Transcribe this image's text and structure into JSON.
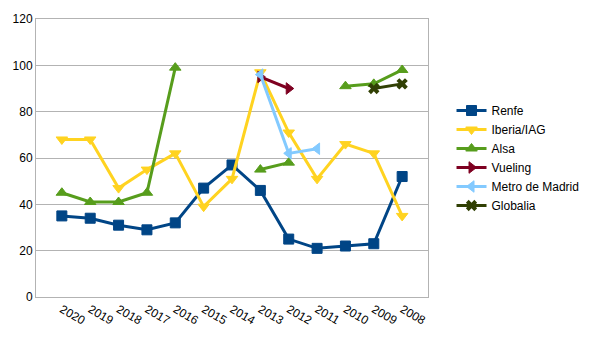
{
  "chart_data": {
    "type": "line",
    "categories": [
      "2020",
      "2019",
      "2018",
      "2017",
      "2016",
      "2015",
      "2014",
      "2013",
      "2012",
      "2011",
      "2010",
      "2009",
      "2008"
    ],
    "series": [
      {
        "name": "Renfe",
        "color": "#004586",
        "marker": "square",
        "values": [
          35,
          34,
          31,
          29,
          32,
          47,
          57,
          46,
          25,
          21,
          22,
          23,
          52
        ]
      },
      {
        "name": "Iberia/IAG",
        "color": "#ffd320",
        "marker": "triangle-down",
        "values": [
          68,
          68,
          47,
          55,
          62,
          39,
          51,
          97,
          71,
          51,
          66,
          62,
          35
        ]
      },
      {
        "name": "Alsa",
        "color": "#579d1c",
        "marker": "triangle-up",
        "values": [
          45,
          41,
          41,
          45,
          99,
          null,
          null,
          55,
          58,
          null,
          91,
          92,
          98
        ]
      },
      {
        "name": "Vueling",
        "color": "#7e0021",
        "marker": "triangle-right",
        "values": [
          null,
          null,
          null,
          null,
          null,
          null,
          null,
          95,
          90,
          null,
          null,
          null,
          null
        ]
      },
      {
        "name": "Metro de Madrid",
        "color": "#83caff",
        "marker": "triangle-left",
        "values": [
          null,
          null,
          null,
          null,
          null,
          null,
          null,
          96,
          62,
          64,
          null,
          null,
          null
        ]
      },
      {
        "name": "Globalia",
        "color": "#314004",
        "marker": "x",
        "values": [
          null,
          null,
          null,
          null,
          null,
          null,
          null,
          null,
          null,
          null,
          null,
          90,
          92
        ]
      }
    ],
    "ylim": [
      0,
      120
    ],
    "yticks": [
      0,
      20,
      40,
      60,
      80,
      100,
      120
    ],
    "grid": true,
    "legend": "right"
  }
}
